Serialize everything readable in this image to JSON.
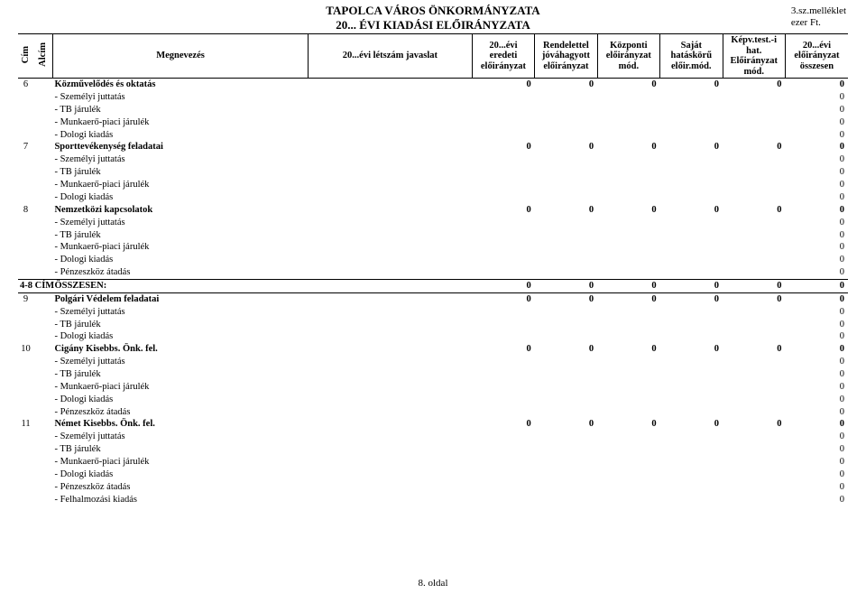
{
  "title": {
    "line1": "TAPOLCA VÁROS ÖNKORMÁNYZATA",
    "line2": "20... ÉVI KIADÁSI ELŐIRÁNYZATA"
  },
  "meta": {
    "attachment": "3.sz.melléklet",
    "unit": "ezer Ft."
  },
  "headers": {
    "cim": "Cím",
    "alcim": "Alcím",
    "megnevezes": "Megnevezés",
    "letszam": "20...évi létszám javaslat",
    "eredeti": "20...évi eredeti előirányzat",
    "rendelettel": "Rendelettel jóváhagyott előirányzat",
    "kozponti": "Központi előirányzat mód.",
    "sajat": "Saját hatáskörű előir.mód.",
    "kepv": "Képv.test.-i hat. Előirányzat mód.",
    "osszesen": "20...évi előirányzat összesen"
  },
  "rows": [
    {
      "idx": "6",
      "label": "Közművelődés és oktatás",
      "bold": true,
      "vals": [
        "0",
        "0",
        "0",
        "0",
        "0",
        "0"
      ]
    },
    {
      "label": "- Személyi juttatás",
      "indent": true,
      "vals": [
        "",
        "",
        "",
        "",
        "",
        "0"
      ]
    },
    {
      "label": "- TB járulék",
      "indent": true,
      "vals": [
        "",
        "",
        "",
        "",
        "",
        "0"
      ]
    },
    {
      "label": "- Munkaerő-piaci járulék",
      "indent": true,
      "vals": [
        "",
        "",
        "",
        "",
        "",
        "0"
      ]
    },
    {
      "label": "- Dologi kiadás",
      "indent": true,
      "vals": [
        "",
        "",
        "",
        "",
        "",
        "0"
      ]
    },
    {
      "idx": "7",
      "label": "Sporttevékenység feladatai",
      "bold": true,
      "vals": [
        "0",
        "0",
        "0",
        "0",
        "0",
        "0"
      ]
    },
    {
      "label": "- Személyi juttatás",
      "indent": true,
      "vals": [
        "",
        "",
        "",
        "",
        "",
        "0"
      ]
    },
    {
      "label": "- TB járulék",
      "indent": true,
      "vals": [
        "",
        "",
        "",
        "",
        "",
        "0"
      ]
    },
    {
      "label": "- Munkaerő-piaci járulék",
      "indent": true,
      "vals": [
        "",
        "",
        "",
        "",
        "",
        "0"
      ]
    },
    {
      "label": "- Dologi kiadás",
      "indent": true,
      "vals": [
        "",
        "",
        "",
        "",
        "",
        "0"
      ]
    },
    {
      "idx": "8",
      "label": "Nemzetközi kapcsolatok",
      "bold": true,
      "vals": [
        "0",
        "0",
        "0",
        "0",
        "0",
        "0"
      ]
    },
    {
      "label": "- Személyi juttatás",
      "indent": true,
      "vals": [
        "",
        "",
        "",
        "",
        "",
        "0"
      ]
    },
    {
      "label": "- TB járulék",
      "indent": true,
      "vals": [
        "",
        "",
        "",
        "",
        "",
        "0"
      ]
    },
    {
      "label": "- Munkaerő-piaci járulék",
      "indent": true,
      "vals": [
        "",
        "",
        "",
        "",
        "",
        "0"
      ]
    },
    {
      "label": "- Dologi kiadás",
      "indent": true,
      "vals": [
        "",
        "",
        "",
        "",
        "",
        "0"
      ]
    },
    {
      "label": "- Pénzeszköz átadás",
      "indent": true,
      "vals": [
        "",
        "",
        "",
        "",
        "",
        "0"
      ]
    },
    {
      "idx": "4-8 CÍM",
      "label": "ÖSSZESEN:",
      "bold": true,
      "sum": true,
      "vals": [
        "0",
        "0",
        "0",
        "0",
        "0",
        "0"
      ]
    },
    {
      "idx": "9",
      "label": "Polgári Védelem feladatai",
      "bold": true,
      "vals": [
        "0",
        "0",
        "0",
        "0",
        "0",
        "0"
      ]
    },
    {
      "label": "- Személyi juttatás",
      "indent": true,
      "vals": [
        "",
        "",
        "",
        "",
        "",
        "0"
      ]
    },
    {
      "label": "- TB járulék",
      "indent": true,
      "vals": [
        "",
        "",
        "",
        "",
        "",
        "0"
      ]
    },
    {
      "label": "- Dologi kiadás",
      "indent": true,
      "vals": [
        "",
        "",
        "",
        "",
        "",
        "0"
      ]
    },
    {
      "idx": "10",
      "label": "Cigány Kisebbs. Önk. fel.",
      "bold": true,
      "vals": [
        "0",
        "0",
        "0",
        "0",
        "0",
        "0"
      ]
    },
    {
      "label": "- Személyi juttatás",
      "indent": true,
      "vals": [
        "",
        "",
        "",
        "",
        "",
        "0"
      ]
    },
    {
      "label": "- TB járulék",
      "indent": true,
      "vals": [
        "",
        "",
        "",
        "",
        "",
        "0"
      ]
    },
    {
      "label": "- Munkaerő-piaci járulék",
      "indent": true,
      "vals": [
        "",
        "",
        "",
        "",
        "",
        "0"
      ]
    },
    {
      "label": "- Dologi kiadás",
      "indent": true,
      "vals": [
        "",
        "",
        "",
        "",
        "",
        "0"
      ]
    },
    {
      "label": "- Pénzeszköz átadás",
      "indent": true,
      "vals": [
        "",
        "",
        "",
        "",
        "",
        "0"
      ]
    },
    {
      "idx": "11",
      "label": "Német Kisebbs. Önk. fel.",
      "bold": true,
      "vals": [
        "0",
        "0",
        "0",
        "0",
        "0",
        "0"
      ]
    },
    {
      "label": "- Személyi juttatás",
      "indent": true,
      "vals": [
        "",
        "",
        "",
        "",
        "",
        "0"
      ]
    },
    {
      "label": "- TB járulék",
      "indent": true,
      "vals": [
        "",
        "",
        "",
        "",
        "",
        "0"
      ]
    },
    {
      "label": "- Munkaerő-piaci járulék",
      "indent": true,
      "vals": [
        "",
        "",
        "",
        "",
        "",
        "0"
      ]
    },
    {
      "label": "- Dologi kiadás",
      "indent": true,
      "vals": [
        "",
        "",
        "",
        "",
        "",
        "0"
      ]
    },
    {
      "label": "- Pénzeszköz átadás",
      "indent": true,
      "vals": [
        "",
        "",
        "",
        "",
        "",
        "0"
      ]
    },
    {
      "label": "- Felhalmozási kiadás",
      "indent": true,
      "vals": [
        "",
        "",
        "",
        "",
        "",
        "0"
      ]
    }
  ],
  "footer": "8. oldal"
}
